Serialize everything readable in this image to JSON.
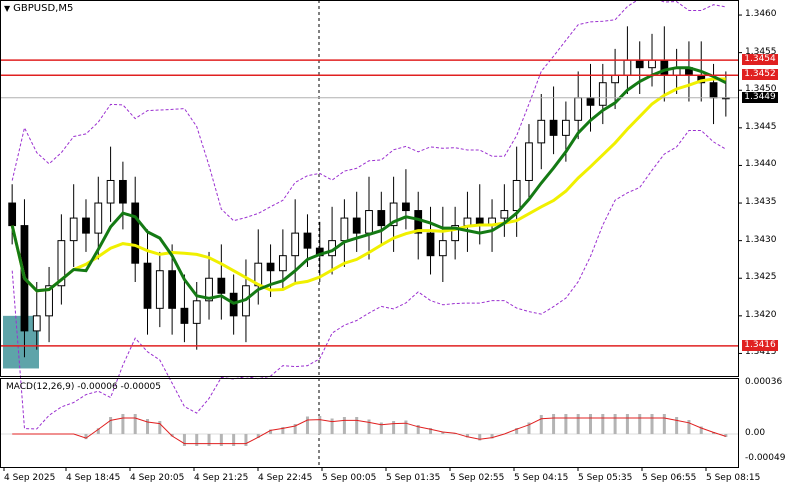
{
  "header": {
    "symbol": "GBPUSD",
    "timeframe": "M5",
    "title": "GBPUSD,M5"
  },
  "macd": {
    "label": "MACD(12,26,9) -0.00006 -0.00005",
    "fast": 12,
    "slow": 26,
    "signal": 9,
    "main_value": -6e-05,
    "signal_value": -5e-05,
    "axis_labels": [
      "0.00036",
      "0.00",
      "-0.00049"
    ]
  },
  "price_axis": {
    "labels": [
      "1.3460",
      "1.3455",
      "1.3450",
      "1.3445",
      "1.3440",
      "1.3435",
      "1.3430",
      "1.3425",
      "1.3420",
      "1.3415"
    ]
  },
  "levels": [
    {
      "name": "resistance-upper",
      "price": "1.3454",
      "color": "#e02020"
    },
    {
      "name": "resistance-lower",
      "price": "1.3452",
      "color": "#e02020"
    },
    {
      "name": "support",
      "price": "1.3416",
      "color": "#e02020"
    }
  ],
  "current_price": {
    "price": "1.3449",
    "color": "#000000"
  },
  "time_axis": {
    "labels": [
      "4 Sep 2025",
      "4 Sep 18:45",
      "4 Sep 20:05",
      "4 Sep 21:25",
      "4 Sep 22:45",
      "5 Sep 00:05",
      "5 Sep 01:35",
      "5 Sep 02:55",
      "5 Sep 04:15",
      "5 Sep 05:35",
      "5 Sep 06:55",
      "5 Sep 08:15"
    ]
  },
  "colors": {
    "ma_fast": "#147a14",
    "ma_slow": "#f0f000",
    "bollinger": "#9b30d0",
    "zone": "#4d9aa0",
    "macd_signal": "#e02020",
    "macd_hist": "#b4b4b4"
  },
  "chart_data": {
    "type": "candlestick",
    "ylim": [
      1.3412,
      1.3462
    ],
    "period_separator": "5 Sep 00:05",
    "close_series": [
      1.3432,
      1.3418,
      1.342,
      1.3424,
      1.343,
      1.3433,
      1.3431,
      1.3435,
      1.3438,
      1.3435,
      1.3427,
      1.3421,
      1.3426,
      1.3421,
      1.3419,
      1.3422,
      1.3425,
      1.3423,
      1.342,
      1.3424,
      1.3427,
      1.3426,
      1.3428,
      1.3431,
      1.3429,
      1.3428,
      1.343,
      1.3433,
      1.3431,
      1.3434,
      1.3432,
      1.3435,
      1.3434,
      1.3431,
      1.3428,
      1.343,
      1.3432,
      1.3433,
      1.3432,
      1.3433,
      1.3434,
      1.3438,
      1.3443,
      1.3446,
      1.3444,
      1.3446,
      1.3449,
      1.3448,
      1.3451,
      1.3452,
      1.3454,
      1.3453,
      1.3454,
      1.3452,
      1.3453,
      1.3452,
      1.3451,
      1.3449,
      1.3449
    ]
  }
}
